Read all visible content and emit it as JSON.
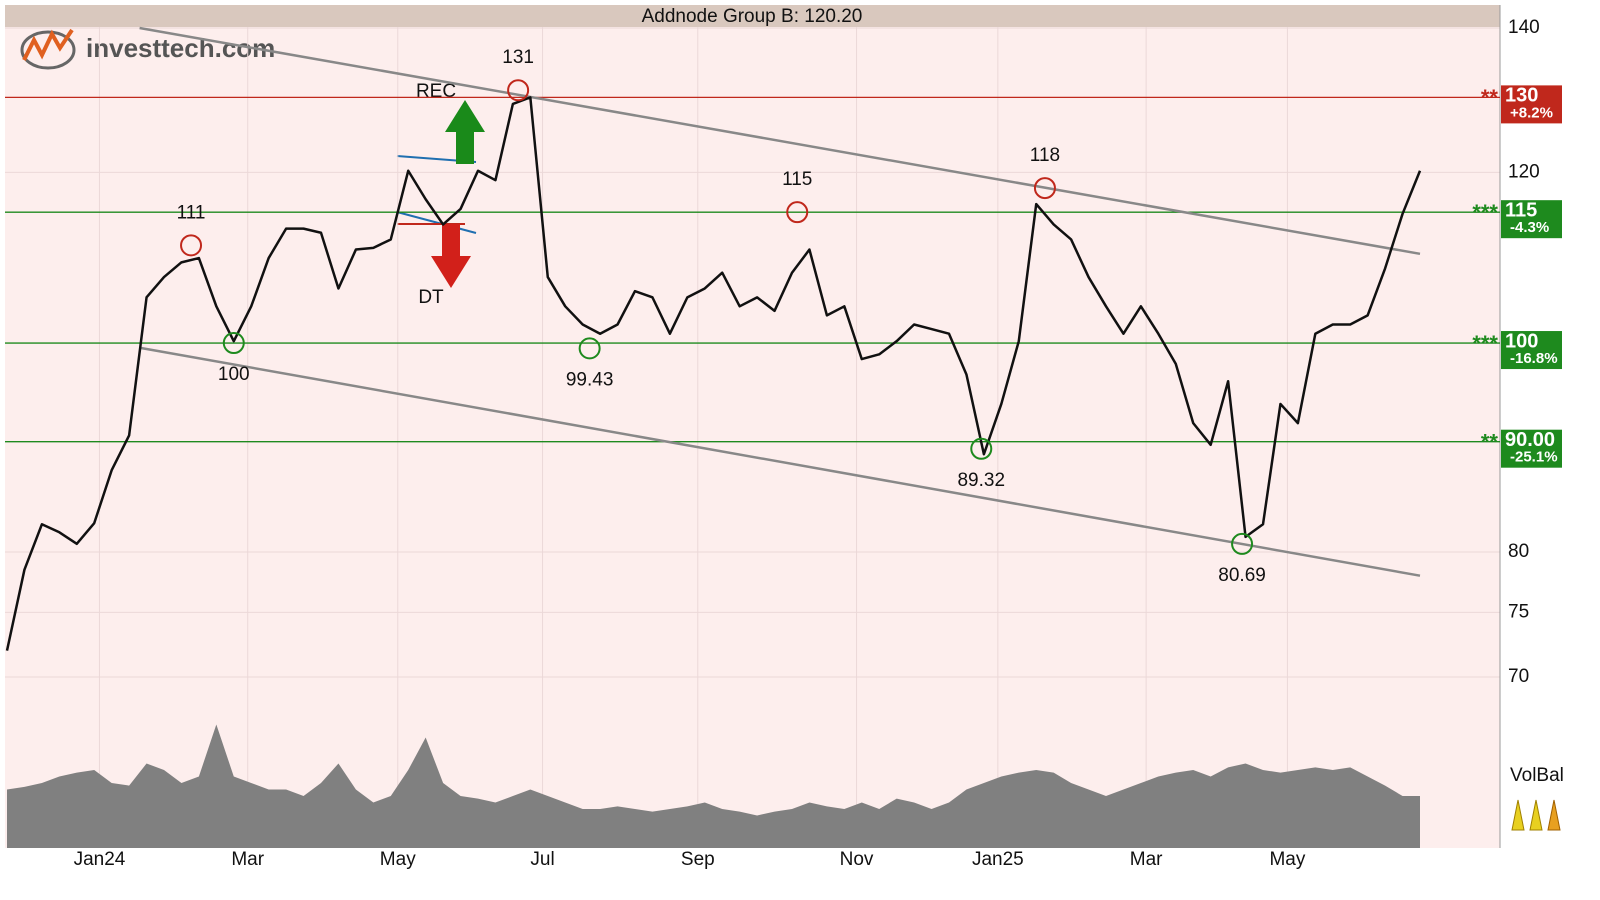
{
  "chart_data": {
    "type": "line",
    "title": "Addnode Group B: 120.20",
    "logo": "investtech.com",
    "indicator_label": "VolBal",
    "log_scale": true,
    "grid": true,
    "ylim": [
      70,
      140
    ],
    "yticks": [
      70,
      75,
      80,
      120,
      140
    ],
    "xlim": [
      0,
      81
    ],
    "xticks": [
      {
        "value": 5.3,
        "label": "Jan24"
      },
      {
        "value": 13.8,
        "label": "Mar"
      },
      {
        "value": 22.4,
        "label": "May"
      },
      {
        "value": 30.7,
        "label": "Jul"
      },
      {
        "value": 39.6,
        "label": "Sep"
      },
      {
        "value": 48.7,
        "label": "Nov"
      },
      {
        "value": 56.8,
        "label": "Jan25"
      },
      {
        "value": 65.3,
        "label": "Mar"
      },
      {
        "value": 73.4,
        "label": "May"
      }
    ],
    "series": [
      {
        "name": "Addnode Group B",
        "color": "#111111",
        "x": [
          0,
          1,
          2,
          3,
          4,
          5,
          6,
          7,
          8,
          9,
          10,
          11,
          12,
          13,
          14,
          15,
          16,
          17,
          18,
          19,
          20,
          21,
          22,
          23,
          24,
          25,
          26,
          27,
          28,
          29,
          30,
          31,
          32,
          33,
          34,
          35,
          36,
          37,
          38,
          39,
          40,
          41,
          42,
          43,
          44,
          45,
          46,
          47,
          48,
          49,
          50,
          51,
          52,
          53,
          54,
          55,
          56,
          57,
          58,
          59,
          60,
          61,
          62,
          63,
          64,
          65,
          66,
          67,
          68,
          69,
          70,
          71,
          72,
          73,
          74,
          75,
          76,
          77,
          78,
          79,
          80,
          81
        ],
        "values": [
          72,
          78.5,
          82.4,
          81.7,
          80.7,
          82.5,
          87.3,
          90.6,
          105,
          107.3,
          109,
          109.5,
          104,
          100.2,
          104,
          109.5,
          113,
          113,
          112.5,
          106,
          110.5,
          110.7,
          111.7,
          120.2,
          116.6,
          113.5,
          115.4,
          120.2,
          119,
          129.1,
          130,
          107.3,
          104,
          102,
          101,
          102,
          105.7,
          105,
          101,
          105,
          106,
          107.8,
          104,
          105,
          103.5,
          107.8,
          110.5,
          103,
          104,
          98.3,
          98.8,
          100.2,
          102,
          101.5,
          101,
          96.7,
          88.8,
          93.7,
          100.2,
          116,
          113.5,
          111.7,
          107.3,
          104,
          101,
          104,
          101,
          97.8,
          91.8,
          89.7,
          96,
          81.3,
          82.4,
          93.7,
          91.8,
          101,
          102,
          102,
          103,
          108.3,
          114.8,
          120.2
        ]
      }
    ],
    "volume": {
      "color": "#808080",
      "ylim": [
        0,
        100
      ],
      "values": [
        45,
        47,
        50,
        55,
        58,
        60,
        50,
        48,
        65,
        60,
        50,
        55,
        95,
        55,
        50,
        45,
        45,
        40,
        50,
        65,
        45,
        35,
        40,
        60,
        85,
        50,
        40,
        38,
        35,
        40,
        45,
        40,
        35,
        30,
        30,
        32,
        30,
        28,
        30,
        32,
        35,
        30,
        28,
        25,
        28,
        30,
        35,
        32,
        30,
        35,
        30,
        38,
        35,
        30,
        35,
        45,
        50,
        55,
        58,
        60,
        58,
        50,
        45,
        40,
        45,
        50,
        55,
        58,
        60,
        55,
        62,
        65,
        60,
        58,
        60,
        62,
        60,
        62,
        55,
        48,
        40,
        40
      ]
    },
    "levels": [
      {
        "value": 130,
        "label": "130",
        "change": "+8.2%",
        "stars": "**",
        "color": "#c0281c"
      },
      {
        "value": 115,
        "label": "115",
        "change": "-4.3%",
        "stars": "***",
        "color": "#1e8a1e"
      },
      {
        "value": 100,
        "label": "100",
        "change": "-16.8%",
        "stars": "***",
        "color": "#1e8a1e"
      },
      {
        "value": 90,
        "label": "90.00",
        "change": "-25.1%",
        "stars": "**",
        "color": "#1e8a1e"
      }
    ],
    "trend_lines": [
      {
        "x": [
          7.6,
          81
        ],
        "y": [
          140,
          110
        ],
        "color": "#888888"
      },
      {
        "x": [
          7.6,
          81
        ],
        "y": [
          99.5,
          78
        ],
        "color": "#888888"
      }
    ],
    "annotations": [
      {
        "label": "131",
        "x": 29.3,
        "value": 131,
        "placement": "above",
        "color": "#c0281c"
      },
      {
        "label": "111",
        "x": 10.55,
        "value": 111,
        "placement": "above",
        "color": "#c0281c"
      },
      {
        "label": "100",
        "x": 13.0,
        "value": 100,
        "placement": "below",
        "color": "#1e8a1e"
      },
      {
        "label": "99.43",
        "x": 33.4,
        "value": 99.43,
        "placement": "below",
        "color": "#1e8a1e"
      },
      {
        "label": "115",
        "x": 45.3,
        "value": 115,
        "placement": "above",
        "color": "#c0281c"
      },
      {
        "label": "118",
        "x": 59.5,
        "value": 118,
        "placement": "above",
        "color": "#c0281c"
      },
      {
        "label": "89.32",
        "x": 55.85,
        "value": 89.32,
        "placement": "below",
        "color": "#1e8a1e"
      },
      {
        "label": "80.69",
        "x": 70.8,
        "value": 80.69,
        "placement": "below",
        "color": "#1e8a1e"
      }
    ],
    "signals": [
      {
        "text": "REC"
      },
      {
        "text": "DT"
      }
    ]
  }
}
